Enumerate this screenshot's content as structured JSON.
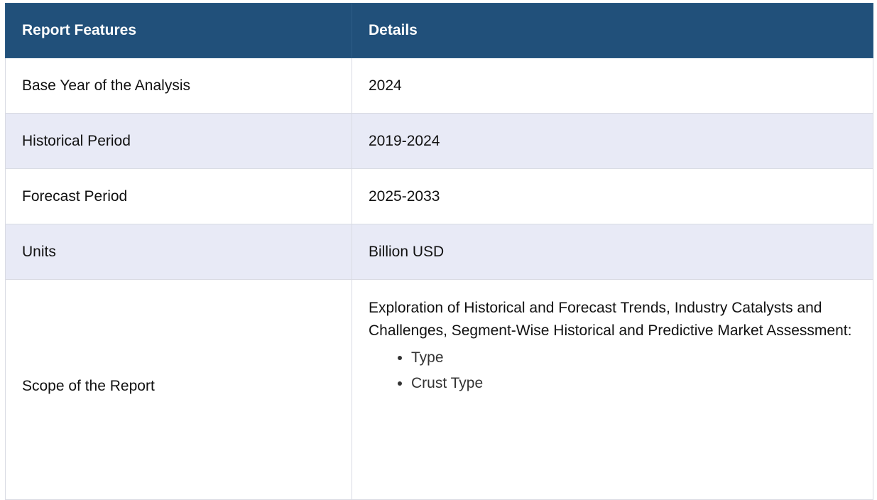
{
  "table": {
    "headers": [
      "Report Features",
      "Details"
    ],
    "rows": [
      {
        "feature": "Base Year of the Analysis",
        "detail": "2024"
      },
      {
        "feature": "Historical Period",
        "detail": "2019-2024"
      },
      {
        "feature": "Forecast Period",
        "detail": "2025-2033"
      },
      {
        "feature": "Units",
        "detail": "Billion USD"
      }
    ],
    "scope": {
      "feature": "Scope of the Report",
      "detail": "Exploration of Historical and Forecast Trends, Industry Catalysts and Challenges, Segment-Wise Historical and Predictive Market Assessment:",
      "items": [
        "Type",
        "Crust Type"
      ]
    }
  },
  "colors": {
    "header_bg": "#21507a",
    "alt_row_bg": "#e8eaf6"
  }
}
